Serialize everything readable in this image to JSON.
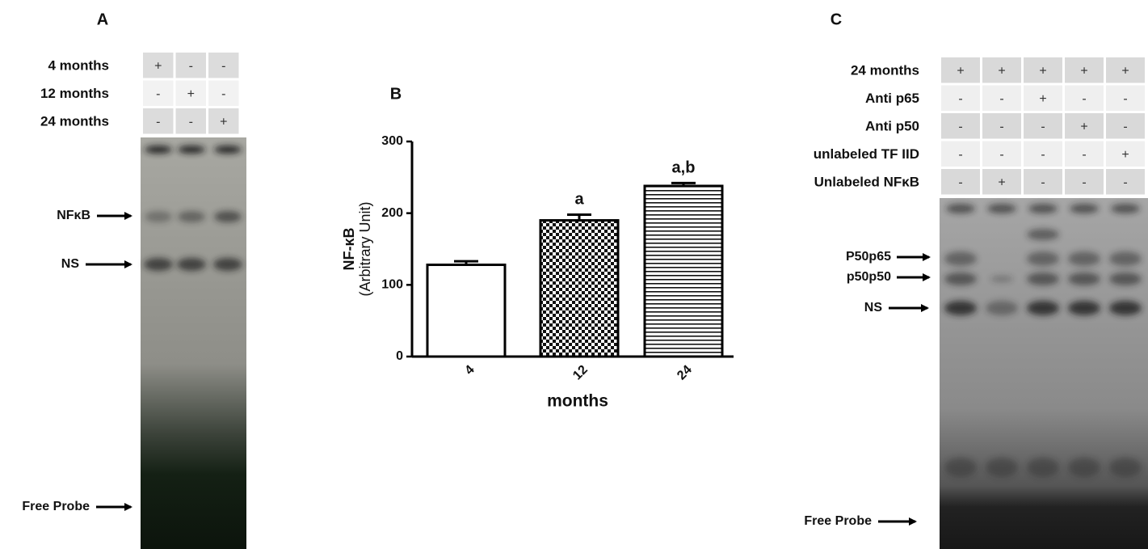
{
  "panel_a": {
    "label": "A",
    "rows": [
      {
        "label": "4 months",
        "cells": [
          "+",
          "-",
          "-"
        ]
      },
      {
        "label": "12 months",
        "cells": [
          "-",
          "+",
          "-"
        ]
      },
      {
        "label": "24 months",
        "cells": [
          "-",
          "-",
          "+"
        ]
      }
    ],
    "markers": [
      "NFκB",
      "NS",
      "Free Probe"
    ]
  },
  "chart_data": {
    "type": "bar",
    "panel_label": "B",
    "ylabel": [
      "NF-κB",
      "(Arbitrary Unit)"
    ],
    "xlabel": "months",
    "categories": [
      "4",
      "12",
      "24"
    ],
    "values": [
      128,
      190,
      238
    ],
    "errors": [
      5,
      8,
      4
    ],
    "bar_labels": [
      null,
      "a",
      "a,b"
    ],
    "fills": [
      "white",
      "checker",
      "stripes"
    ],
    "ylim": [
      0,
      300
    ],
    "yticks": [
      0,
      100,
      200,
      300
    ]
  },
  "panel_c": {
    "label": "C",
    "rows": [
      {
        "label": "24 months",
        "cells": [
          "+",
          "+",
          "+",
          "+",
          "+"
        ]
      },
      {
        "label": "Anti p65",
        "cells": [
          "-",
          "-",
          "+",
          "-",
          "-"
        ]
      },
      {
        "label": "Anti p50",
        "cells": [
          "-",
          "-",
          "-",
          "+",
          "-"
        ]
      },
      {
        "label": "unlabeled TF IID",
        "cells": [
          "-",
          "-",
          "-",
          "-",
          "+"
        ]
      },
      {
        "label": "Unlabeled NFκB",
        "cells": [
          "-",
          "+",
          "-",
          "-",
          "-"
        ]
      }
    ],
    "markers": [
      "P50p65",
      "p50p50",
      "NS",
      "Free Probe"
    ]
  }
}
